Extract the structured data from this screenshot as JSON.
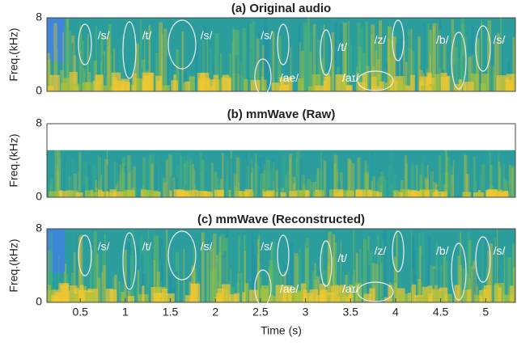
{
  "chart_data": [
    {
      "type": "spectrogram",
      "title": "(a) Original audio",
      "ylabel": "Freq.(kHz)",
      "xlim": [
        0.13,
        5.33
      ],
      "ylim": [
        0,
        8
      ],
      "yticks": [
        0,
        8
      ],
      "annotations": [
        {
          "text": "/s/",
          "x": 0.76,
          "y": 6.0
        },
        {
          "text": "/t/",
          "x": 1.24,
          "y": 6.0
        },
        {
          "text": "/s/",
          "x": 1.9,
          "y": 6.0
        },
        {
          "text": "/s/",
          "x": 2.57,
          "y": 6.0
        },
        {
          "text": "/ae/",
          "x": 2.82,
          "y": 1.4
        },
        {
          "text": "/t/",
          "x": 3.41,
          "y": 4.7
        },
        {
          "text": "/aɪ/",
          "x": 3.5,
          "y": 1.4
        },
        {
          "text": "/z/",
          "x": 3.83,
          "y": 5.5
        },
        {
          "text": "/b/",
          "x": 4.52,
          "y": 5.5
        },
        {
          "text": "/s/",
          "x": 5.15,
          "y": 5.5
        }
      ]
    },
    {
      "type": "spectrogram",
      "title": "(b) mmWave (Raw)",
      "ylabel": "Freq.(kHz)",
      "xlim": [
        0.13,
        5.33
      ],
      "ylim": [
        0,
        8
      ],
      "yticks": [
        0,
        8
      ]
    },
    {
      "type": "spectrogram",
      "title": "(c) mmWave (Reconstructed)",
      "ylabel": "Freq.(kHz)",
      "xlabel": "Time (s)",
      "xlim": [
        0.13,
        5.33
      ],
      "ylim": [
        0,
        8
      ],
      "yticks": [
        0,
        8
      ],
      "xticks": [
        0.5,
        1,
        1.5,
        2,
        2.5,
        3,
        3.5,
        4,
        4.5,
        5
      ],
      "annotations": [
        {
          "text": "/s/",
          "x": 0.76,
          "y": 6.0
        },
        {
          "text": "/t/",
          "x": 1.24,
          "y": 6.0
        },
        {
          "text": "/s/",
          "x": 1.9,
          "y": 6.0
        },
        {
          "text": "/s/",
          "x": 2.57,
          "y": 6.0
        },
        {
          "text": "/ae/",
          "x": 2.82,
          "y": 1.4
        },
        {
          "text": "/t/",
          "x": 3.41,
          "y": 4.7
        },
        {
          "text": "/aɪ/",
          "x": 3.5,
          "y": 1.4
        },
        {
          "text": "/z/",
          "x": 3.83,
          "y": 5.5
        },
        {
          "text": "/b/",
          "x": 4.52,
          "y": 5.5
        },
        {
          "text": "/s/",
          "x": 5.15,
          "y": 5.5
        }
      ]
    }
  ]
}
